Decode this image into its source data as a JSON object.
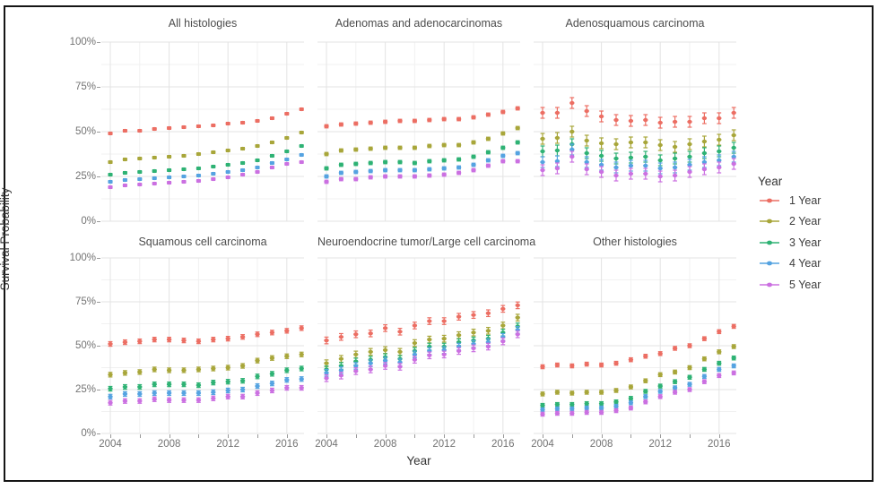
{
  "chart_data": {
    "type": "scatter",
    "title": "",
    "xlabel": "Year",
    "ylabel": "Survival Probability",
    "x": [
      2004,
      2005,
      2006,
      2007,
      2008,
      2009,
      2010,
      2011,
      2012,
      2013,
      2014,
      2015,
      2016,
      2017
    ],
    "xtick_labels": [
      "2004",
      "2008",
      "2012",
      "2016"
    ],
    "xtick_years": [
      2004,
      2008,
      2012,
      2016
    ],
    "xminor_years": [
      2006,
      2010,
      2014
    ],
    "ytick_labels": [
      "100%",
      "75%",
      "50%",
      "25%",
      "0%"
    ],
    "ytick_values": [
      100,
      75,
      50,
      25,
      0
    ],
    "yminor_values": [
      87.5,
      62.5,
      37.5,
      12.5
    ],
    "ylim": [
      0,
      100
    ],
    "grid": true,
    "marker": "point-with-errorbar",
    "legend": {
      "title": "Year",
      "position": "right",
      "entries": [
        {
          "label": "1 Year",
          "color": "#ec6e63"
        },
        {
          "label": "2 Year",
          "color": "#a8a63a"
        },
        {
          "label": "3 Year",
          "color": "#2eb274"
        },
        {
          "label": "4 Year",
          "color": "#55a3e1"
        },
        {
          "label": "5 Year",
          "color": "#cb70e1"
        }
      ]
    },
    "facets": [
      {
        "title": "All histologies",
        "error_halfwidth": 0.7,
        "series": [
          {
            "name": "1 Year",
            "values": [
              49,
              50.5,
              50.5,
              51.5,
              52,
              52.5,
              53,
              53.5,
              54.5,
              55,
              56,
              57.5,
              60,
              62.5
            ]
          },
          {
            "name": "2 Year",
            "values": [
              33,
              34.5,
              35,
              35.5,
              36,
              36.5,
              37.5,
              38.5,
              39.5,
              40.5,
              42,
              44,
              46.5,
              49.5
            ]
          },
          {
            "name": "3 Year",
            "values": [
              26,
              27,
              27.5,
              28,
              28.5,
              29,
              29.5,
              30.5,
              31.5,
              32.5,
              34,
              36.5,
              39,
              42
            ]
          },
          {
            "name": "4 Year",
            "values": [
              22,
              23,
              23.5,
              24,
              24.5,
              25,
              25.5,
              26.5,
              27.5,
              28.5,
              30,
              32.5,
              34.5,
              37
            ]
          },
          {
            "name": "5 Year",
            "values": [
              19,
              20,
              20.5,
              21,
              21.5,
              22,
              22.5,
              23.5,
              24.5,
              26,
              27.5,
              30,
              32,
              33
            ]
          }
        ]
      },
      {
        "title": "Adenomas and adenocarcinomas",
        "error_halfwidth": 0.9,
        "series": [
          {
            "name": "1 Year",
            "values": [
              53,
              54,
              54.5,
              55,
              55.5,
              56,
              56,
              56.5,
              57,
              57,
              58,
              59.5,
              61,
              63
            ]
          },
          {
            "name": "2 Year",
            "values": [
              37.5,
              39.5,
              40,
              40.5,
              41,
              41,
              41,
              42,
              42.5,
              42.5,
              44,
              46,
              49,
              52
            ]
          },
          {
            "name": "3 Year",
            "values": [
              29.5,
              31.5,
              32,
              32.5,
              33,
              33,
              32.5,
              33.5,
              34,
              34.5,
              36,
              38.5,
              41,
              44
            ]
          },
          {
            "name": "4 Year",
            "values": [
              25,
              27,
              27.5,
              28,
              28.5,
              28.5,
              28.5,
              29,
              29.5,
              30,
              31.5,
              34,
              36.5,
              38
            ]
          },
          {
            "name": "5 Year",
            "values": [
              22,
              23.5,
              23.5,
              24.5,
              25,
              25,
              25,
              25.5,
              26,
              27,
              28.5,
              31,
              33.5,
              33.5
            ]
          }
        ]
      },
      {
        "title": "Adenosquamous carcinoma",
        "error_halfwidth": 3,
        "series": [
          {
            "name": "1 Year",
            "values": [
              60.5,
              60.5,
              66,
              61.5,
              58.5,
              56.5,
              56,
              56.5,
              55,
              55.5,
              55.5,
              57.5,
              57.5,
              60.5
            ]
          },
          {
            "name": "2 Year",
            "values": [
              46,
              46.5,
              50,
              45,
              43.5,
              43,
              44,
              44,
              42.5,
              41.5,
              43,
              44.5,
              45.5,
              48
            ]
          },
          {
            "name": "3 Year",
            "values": [
              39,
              39.5,
              43,
              38,
              36.5,
              35,
              35.5,
              36,
              34,
              35,
              36,
              38,
              39,
              41
            ]
          },
          {
            "name": "4 Year",
            "values": [
              33,
              33.5,
              40,
              33,
              31.5,
              30,
              31,
              31,
              29.5,
              30,
              31.5,
              33,
              34,
              36
            ]
          },
          {
            "name": "5 Year",
            "values": [
              28.5,
              29.5,
              36,
              29,
              27.5,
              25.5,
              26.5,
              26.5,
              25,
              25.5,
              27.5,
              29,
              30,
              32
            ]
          }
        ]
      },
      {
        "title": "Squamous cell carcinoma",
        "error_halfwidth": 1.3,
        "series": [
          {
            "name": "1 Year",
            "values": [
              51,
              52,
              52.5,
              53.5,
              53.5,
              53,
              52.5,
              53.5,
              54,
              55,
              56.5,
              57.5,
              58.5,
              60
            ]
          },
          {
            "name": "2 Year",
            "values": [
              33.5,
              34.5,
              35,
              36.5,
              36,
              36,
              36.5,
              37,
              37.5,
              38.5,
              41.5,
              43,
              44,
              45
            ]
          },
          {
            "name": "3 Year",
            "values": [
              25.5,
              26.5,
              26.5,
              28,
              28,
              28,
              27.5,
              29,
              29.5,
              30,
              32.5,
              34,
              36,
              37
            ]
          },
          {
            "name": "4 Year",
            "values": [
              21,
              22.5,
              22.5,
              23,
              23,
              23,
              23,
              23.5,
              24.5,
              25,
              27,
              28.5,
              30.5,
              31
            ]
          },
          {
            "name": "5 Year",
            "values": [
              17.5,
              18.5,
              18.5,
              19.5,
              19,
              19,
              19,
              20,
              21,
              21,
              23,
              24.5,
              26,
              26
            ]
          }
        ]
      },
      {
        "title": "Neuroendocrine tumor/Large cell carcinoma",
        "error_halfwidth": 1.9,
        "series": [
          {
            "name": "1 Year",
            "values": [
              53,
              55,
              56.5,
              57,
              60,
              58,
              61.5,
              64,
              64,
              66.5,
              67.5,
              68.5,
              71,
              73
            ]
          },
          {
            "name": "2 Year",
            "values": [
              40,
              42.5,
              45,
              46.5,
              47.5,
              46.5,
              51.5,
              53.5,
              54,
              56,
              57.5,
              58.5,
              61.5,
              66
            ]
          },
          {
            "name": "3 Year",
            "values": [
              36.5,
              38.5,
              41,
              42,
              43.5,
              42.5,
              47,
              49.5,
              49.5,
              52,
              53,
              54,
              57.5,
              61
            ]
          },
          {
            "name": "4 Year",
            "values": [
              34.5,
              36,
              38.5,
              40,
              41.5,
              40.5,
              45,
              47,
              47.5,
              49.5,
              51,
              52,
              55,
              59
            ]
          },
          {
            "name": "5 Year",
            "values": [
              31.5,
              33,
              35.5,
              36.5,
              38.5,
              38,
              42,
              44.5,
              45,
              47,
              48.5,
              49.5,
              52.5,
              56.5
            ]
          }
        ]
      },
      {
        "title": "Other histologies",
        "error_halfwidth": 1.1,
        "series": [
          {
            "name": "1 Year",
            "values": [
              38,
              39,
              38.5,
              39.5,
              39,
              40,
              42,
              44,
              45.5,
              48.5,
              50,
              54,
              58,
              61
            ]
          },
          {
            "name": "2 Year",
            "values": [
              22.5,
              23.5,
              23,
              23.5,
              23.5,
              24.5,
              26.5,
              30,
              33.5,
              35,
              37.5,
              42.5,
              46.5,
              49.5
            ]
          },
          {
            "name": "3 Year",
            "values": [
              16,
              16.5,
              16.5,
              17,
              17,
              18,
              20,
              24,
              27,
              29.5,
              32,
              36.5,
              40,
              43
            ]
          },
          {
            "name": "4 Year",
            "values": [
              13.5,
              14,
              14,
              14.5,
              14.5,
              15.5,
              17.5,
              21,
              24,
              26,
              28,
              32.5,
              36.5,
              38.5
            ]
          },
          {
            "name": "5 Year",
            "values": [
              11,
              11.5,
              11.5,
              12,
              12,
              13,
              14.5,
              18,
              21,
              23.5,
              25,
              29.5,
              33,
              34.5
            ]
          }
        ]
      }
    ]
  }
}
